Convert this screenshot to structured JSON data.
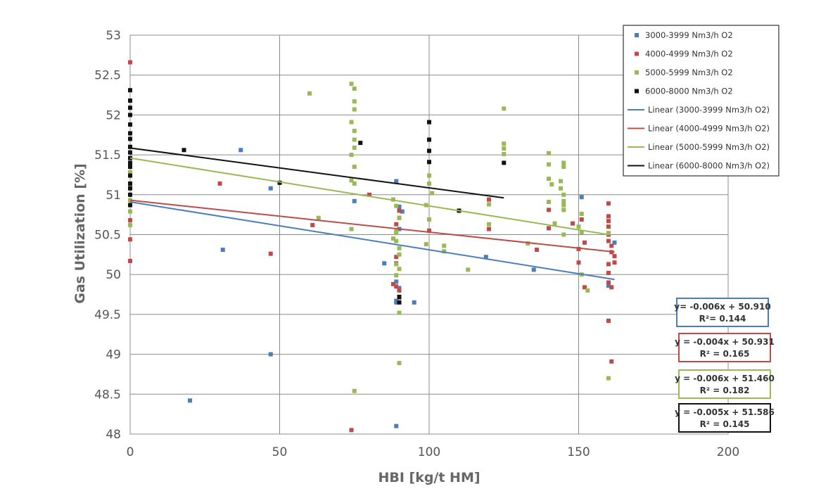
{
  "chart_data": {
    "type": "scatter",
    "xlabel": "HBI [kg/t HM]",
    "ylabel": "Gas Utilization [%]",
    "xlim": [
      0,
      200
    ],
    "ylim": [
      48,
      53
    ],
    "x_ticks": [
      "0",
      "50",
      "100",
      "150",
      "200"
    ],
    "y_ticks": [
      "48",
      "48.5",
      "49",
      "49.5",
      "50",
      "50.5",
      "51",
      "51.5",
      "52",
      "52.5",
      "53"
    ],
    "grid": true,
    "legend_position": "top-right",
    "series": [
      {
        "name": "3000-3999 Nm3/h O2",
        "color": "#4a7ebb",
        "points": [
          [
            37,
            51.56
          ],
          [
            47,
            51.08
          ],
          [
            31,
            50.31
          ],
          [
            47,
            49.0
          ],
          [
            20,
            48.42
          ],
          [
            75,
            50.92
          ],
          [
            85,
            50.14
          ],
          [
            89,
            51.17
          ],
          [
            90,
            50.57
          ],
          [
            91,
            50.79
          ],
          [
            89,
            49.91
          ],
          [
            89,
            49.65
          ],
          [
            89,
            49.67
          ],
          [
            95,
            49.65
          ],
          [
            89,
            48.1
          ],
          [
            90,
            49.83
          ],
          [
            119,
            50.22
          ],
          [
            135,
            50.06
          ],
          [
            151,
            50.97
          ],
          [
            160,
            49.86
          ],
          [
            162,
            50.4
          ],
          [
            90,
            50.85
          ]
        ]
      },
      {
        "name": "4000-4999 Nm3/h O2",
        "color": "#be4b48",
        "points": [
          [
            0,
            52.66
          ],
          [
            0,
            50.68
          ],
          [
            0,
            50.44
          ],
          [
            0,
            50.17
          ],
          [
            30,
            51.14
          ],
          [
            47,
            50.26
          ],
          [
            61,
            50.62
          ],
          [
            80,
            51.0
          ],
          [
            74,
            48.05
          ],
          [
            88,
            49.88
          ],
          [
            89,
            50.22
          ],
          [
            89,
            50.14
          ],
          [
            89,
            50.63
          ],
          [
            90,
            50.8
          ],
          [
            89,
            49.85
          ],
          [
            90,
            49.8
          ],
          [
            90,
            50.71
          ],
          [
            100,
            50.55
          ],
          [
            120,
            50.94
          ],
          [
            120,
            50.57
          ],
          [
            140,
            50.81
          ],
          [
            140,
            50.58
          ],
          [
            136,
            50.31
          ],
          [
            148,
            50.64
          ],
          [
            151,
            50.69
          ],
          [
            150,
            50.32
          ],
          [
            152,
            50.4
          ],
          [
            150,
            50.15
          ],
          [
            152,
            49.84
          ],
          [
            160,
            50.89
          ],
          [
            160,
            50.73
          ],
          [
            160,
            50.67
          ],
          [
            160,
            50.6
          ],
          [
            160,
            50.5
          ],
          [
            160,
            50.42
          ],
          [
            161,
            50.36
          ],
          [
            162,
            50.23
          ],
          [
            160,
            50.13
          ],
          [
            160,
            50.02
          ],
          [
            160,
            49.9
          ],
          [
            161,
            50.28
          ],
          [
            160,
            49.42
          ],
          [
            161,
            48.91
          ],
          [
            162,
            50.15
          ],
          [
            161,
            49.84
          ],
          [
            90,
            49.71
          ]
        ]
      },
      {
        "name": "5000-5999 Nm3/h O2",
        "color": "#98b954",
        "points": [
          [
            0,
            51.88
          ],
          [
            0,
            51.6
          ],
          [
            0,
            51.28
          ],
          [
            0,
            51.12
          ],
          [
            0,
            50.93
          ],
          [
            0,
            50.79
          ],
          [
            0,
            50.62
          ],
          [
            60,
            52.27
          ],
          [
            63,
            50.71
          ],
          [
            74,
            52.39
          ],
          [
            75,
            52.33
          ],
          [
            75,
            52.17
          ],
          [
            75,
            52.07
          ],
          [
            74,
            51.91
          ],
          [
            75,
            51.8
          ],
          [
            75,
            51.69
          ],
          [
            75,
            51.59
          ],
          [
            74,
            51.5
          ],
          [
            75,
            51.35
          ],
          [
            74,
            51.18
          ],
          [
            75,
            51.14
          ],
          [
            74,
            50.57
          ],
          [
            75,
            48.54
          ],
          [
            88,
            50.94
          ],
          [
            89,
            50.86
          ],
          [
            90,
            50.71
          ],
          [
            89,
            50.52
          ],
          [
            89,
            50.42
          ],
          [
            90,
            50.33
          ],
          [
            90,
            50.25
          ],
          [
            89,
            50.13
          ],
          [
            90,
            50.07
          ],
          [
            89,
            49.99
          ],
          [
            90,
            49.52
          ],
          [
            90,
            48.89
          ],
          [
            88,
            50.45
          ],
          [
            89,
            50.54
          ],
          [
            100,
            51.24
          ],
          [
            100,
            51.14
          ],
          [
            101,
            51.02
          ],
          [
            99,
            50.87
          ],
          [
            100,
            50.69
          ],
          [
            99,
            50.38
          ],
          [
            105,
            50.36
          ],
          [
            105,
            50.29
          ],
          [
            113,
            50.06
          ],
          [
            120,
            50.63
          ],
          [
            120,
            50.88
          ],
          [
            125,
            52.08
          ],
          [
            125,
            51.64
          ],
          [
            125,
            51.58
          ],
          [
            125,
            51.51
          ],
          [
            133,
            50.39
          ],
          [
            140,
            51.52
          ],
          [
            140,
            51.38
          ],
          [
            140,
            51.2
          ],
          [
            141,
            51.13
          ],
          [
            140,
            50.91
          ],
          [
            142,
            50.64
          ],
          [
            144,
            51.08
          ],
          [
            145,
            51.4
          ],
          [
            145,
            51.35
          ],
          [
            144,
            51.17
          ],
          [
            145,
            51.0
          ],
          [
            145,
            50.92
          ],
          [
            145,
            50.87
          ],
          [
            145,
            50.81
          ],
          [
            145,
            50.5
          ],
          [
            151,
            50.76
          ],
          [
            150,
            50.6
          ],
          [
            151,
            50.53
          ],
          [
            153,
            49.8
          ],
          [
            160,
            48.7
          ],
          [
            160,
            50.52
          ],
          [
            151,
            50.0
          ]
        ]
      },
      {
        "name": "6000-8000 Nm3/h O2",
        "color": "#111111",
        "points": [
          [
            0,
            52.31
          ],
          [
            0,
            52.18
          ],
          [
            0,
            52.09
          ],
          [
            0,
            52.0
          ],
          [
            0,
            51.88
          ],
          [
            0,
            51.77
          ],
          [
            0,
            51.7
          ],
          [
            0,
            51.6
          ],
          [
            0,
            51.53
          ],
          [
            0,
            51.46
          ],
          [
            0,
            51.4
          ],
          [
            0,
            51.35
          ],
          [
            0,
            51.24
          ],
          [
            0,
            51.14
          ],
          [
            0,
            51.08
          ],
          [
            0,
            51.0
          ],
          [
            0,
            50.87
          ],
          [
            18,
            51.56
          ],
          [
            50,
            51.15
          ],
          [
            77,
            51.65
          ],
          [
            90,
            49.72
          ],
          [
            90,
            49.65
          ],
          [
            100,
            51.91
          ],
          [
            100,
            51.69
          ],
          [
            100,
            51.55
          ],
          [
            100,
            51.41
          ],
          [
            110,
            50.8
          ],
          [
            125,
            51.4
          ]
        ]
      }
    ],
    "trendlines": [
      {
        "name": "Linear (3000-3999 Nm3/h O2)",
        "color": "#4a7ebb",
        "x": [
          0,
          162
        ],
        "slope": -0.006,
        "intercept": 50.91,
        "equation": "y= -0.006x + 50.910",
        "r2": "R²= 0.144"
      },
      {
        "name": "Linear (4000-4999 Nm3/h O2)",
        "color": "#be4b48",
        "x": [
          0,
          162
        ],
        "slope": -0.004,
        "intercept": 50.931,
        "equation": "y = -0.004x + 50.931",
        "r2": "R² = 0.165"
      },
      {
        "name": "Linear (5000-5999 Nm3/h O2)",
        "color": "#98b954",
        "x": [
          0,
          160
        ],
        "slope": -0.006,
        "intercept": 51.46,
        "equation": "y = -0.006x + 51.460",
        "r2": "R² = 0.182"
      },
      {
        "name": "Linear (6000-8000 Nm3/h O2)",
        "color": "#111111",
        "x": [
          0,
          125
        ],
        "slope": -0.005,
        "intercept": 51.586,
        "equation": "y = -0.005x + 51.586",
        "r2": "R² = 0.145"
      }
    ]
  }
}
